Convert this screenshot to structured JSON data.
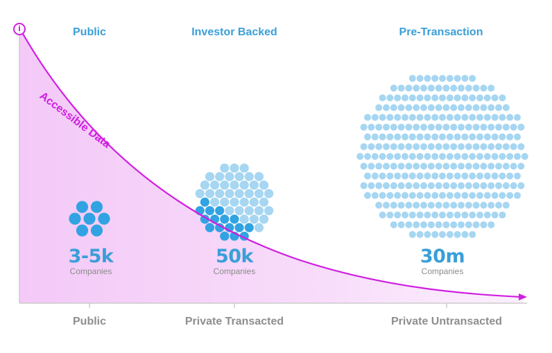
{
  "segments": [
    {
      "title": "Public",
      "count": "3-5k",
      "unit": "Companies",
      "x_category": "Public"
    },
    {
      "title": "Investor Backed",
      "count": "50k",
      "unit": "Companies",
      "x_category": "Private Transacted"
    },
    {
      "title": "Pre-Transaction",
      "count": "30m",
      "unit": "Companies",
      "x_category": "Private Untransacted"
    }
  ],
  "curve": {
    "label": "Accessible Data"
  },
  "icons": {
    "info": "info-icon",
    "info_glyph": "i"
  },
  "colors": {
    "accent_magenta": "#cf1fe0",
    "dot_dark": "#32a3e2",
    "dot_light": "#a6d6f1",
    "title_blue": "#3a9fd8",
    "axis_gray": "#cccccc",
    "category_gray": "#8e8e8e"
  }
}
